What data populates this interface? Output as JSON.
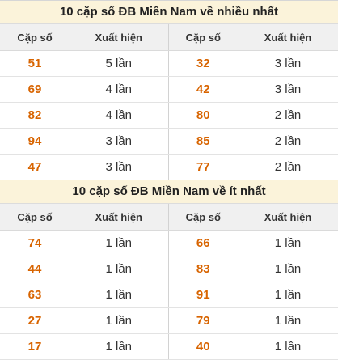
{
  "sections": [
    {
      "title": "10 cặp số ĐB Miền Nam về nhiều nhất",
      "headers": [
        "Cặp số",
        "Xuất hiện",
        "Cặp số",
        "Xuất hiện"
      ],
      "rows": [
        [
          "51",
          "5 lần",
          "32",
          "3 lần"
        ],
        [
          "69",
          "4 lần",
          "42",
          "3 lần"
        ],
        [
          "82",
          "4 lần",
          "80",
          "2 lần"
        ],
        [
          "94",
          "3 lần",
          "85",
          "2 lần"
        ],
        [
          "47",
          "3 lần",
          "77",
          "2 lần"
        ]
      ]
    },
    {
      "title": "10 cặp số ĐB Miền Nam về ít nhất",
      "headers": [
        "Cặp số",
        "Xuất hiện",
        "Cặp số",
        "Xuất hiện"
      ],
      "rows": [
        [
          "74",
          "1 lần",
          "66",
          "1 lần"
        ],
        [
          "44",
          "1 lần",
          "83",
          "1 lần"
        ],
        [
          "63",
          "1 lần",
          "91",
          "1 lần"
        ],
        [
          "27",
          "1 lần",
          "79",
          "1 lần"
        ],
        [
          "17",
          "1 lần",
          "40",
          "1 lần"
        ]
      ]
    }
  ],
  "colors": {
    "number": "#d86400",
    "title_bg": "#fbf3da",
    "header_bg": "#f0f0f0"
  }
}
